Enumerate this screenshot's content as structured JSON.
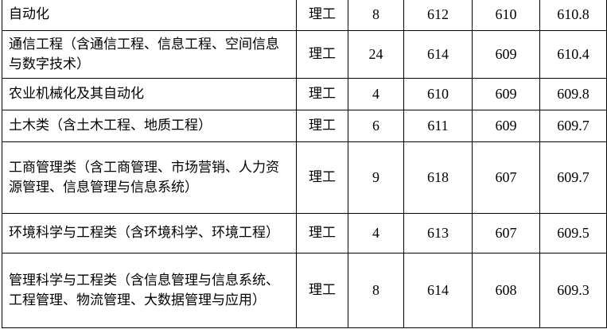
{
  "rows": [
    {
      "major": "自动化",
      "category": "理工",
      "count": "8",
      "max": "612",
      "min": "610",
      "avg": "610.8"
    },
    {
      "major": "通信工程（含通信工程、信息工程、空间信息与数字技术）",
      "category": "理工",
      "count": "24",
      "max": "614",
      "min": "609",
      "avg": "610.4"
    },
    {
      "major": "农业机械化及其自动化",
      "category": "理工",
      "count": "4",
      "max": "610",
      "min": "609",
      "avg": "609.8"
    },
    {
      "major": "土木类（含土木工程、地质工程）",
      "category": "理工",
      "count": "6",
      "max": "611",
      "min": "609",
      "avg": "609.7"
    },
    {
      "major": "工商管理类（含工商管理、市场营销、人力资源管理、信息管理与信息系统）",
      "category": "理工",
      "count": "9",
      "max": "618",
      "min": "607",
      "avg": "609.7"
    },
    {
      "major": "环境科学与工程类（含环境科学、环境工程）",
      "category": "理工",
      "count": "4",
      "max": "613",
      "min": "607",
      "avg": "609.5"
    },
    {
      "major": "管理科学与工程类（含信息管理与信息系统、工程管理、物流管理、大数据管理与应用）",
      "category": "理工",
      "count": "8",
      "max": "614",
      "min": "608",
      "avg": "609.3"
    }
  ]
}
